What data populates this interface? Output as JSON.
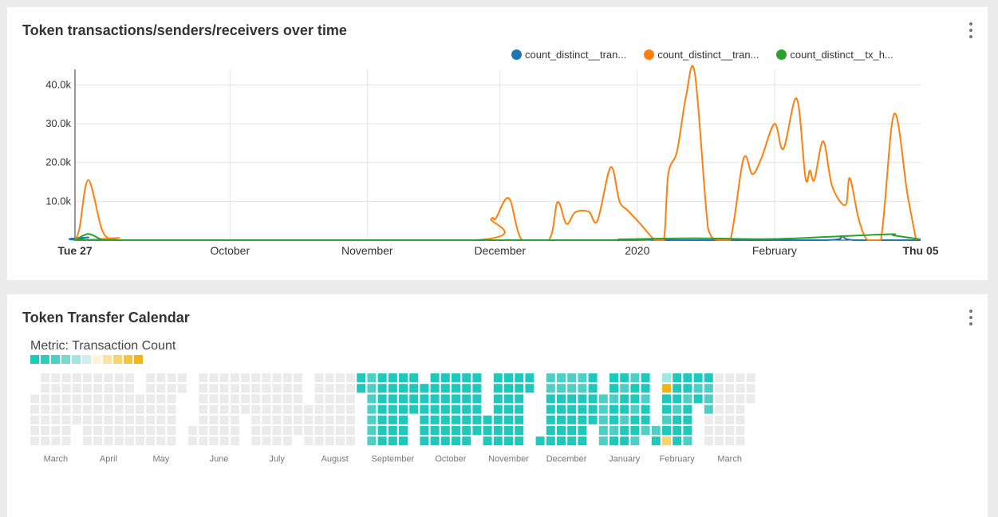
{
  "panel1": {
    "title": "Token transactions/senders/receivers over time",
    "legend": [
      {
        "label": "count_distinct__tran...",
        "color": "#1f77b4"
      },
      {
        "label": "count_distinct__tran...",
        "color": "#ff7f0e"
      },
      {
        "label": "count_distinct__tx_h...",
        "color": "#2ca02c"
      }
    ]
  },
  "panel2": {
    "title": "Token Transfer Calendar",
    "metric_label": "Metric: Transaction Count",
    "scale_colors": [
      "#1ec8bb",
      "#30cbc0",
      "#4ecfc6",
      "#75d9d2",
      "#a3e6e1",
      "#cfefed",
      "#fff4d8",
      "#fbe2a0",
      "#f9d36c",
      "#f5c33e",
      "#f2b418"
    ],
    "months": [
      "March",
      "April",
      "May",
      "June",
      "July",
      "August",
      "September",
      "October",
      "November",
      "December",
      "January",
      "February",
      "March"
    ],
    "empty_color": "#ebebeb"
  },
  "chart_data": [
    {
      "type": "line",
      "title": "Token transactions/senders/receivers over time",
      "xlabel": "",
      "ylabel": "",
      "x_tick_labels": [
        "Tue 27",
        "October",
        "November",
        "December",
        "2020",
        "February",
        "Thu 05"
      ],
      "y_tick_labels": [
        "10.0k",
        "20.0k",
        "30.0k",
        "40.0k"
      ],
      "ylim": [
        0,
        44000
      ],
      "x_range": [
        "2019-08-27",
        "2020-03-05"
      ],
      "grid": true,
      "legend_position": "top-right",
      "series": [
        {
          "name": "count_distinct__tran...",
          "color": "#1f77b4",
          "points": [
            [
              "2019-08-27",
              0
            ],
            [
              "2019-08-30",
              700
            ],
            [
              "2019-09-02",
              0
            ],
            [
              "2019-11-28",
              0
            ],
            [
              "2019-12-29",
              0
            ],
            [
              "2020-01-03",
              300
            ],
            [
              "2020-01-07",
              0
            ],
            [
              "2020-02-12",
              0
            ],
            [
              "2020-02-16",
              1000
            ],
            [
              "2020-02-19",
              0
            ],
            [
              "2020-03-05",
              0
            ]
          ]
        },
        {
          "name": "count_distinct__tran...",
          "color": "#ff7f0e",
          "points": [
            [
              "2019-08-27",
              0
            ],
            [
              "2019-08-28",
              3000
            ],
            [
              "2019-08-30",
              15500
            ],
            [
              "2019-09-02",
              3000
            ],
            [
              "2019-09-04",
              300
            ],
            [
              "2019-09-06",
              600
            ],
            [
              "2019-09-08",
              0
            ],
            [
              "2019-11-25",
              0
            ],
            [
              "2019-11-29",
              5500
            ],
            [
              "2019-11-30",
              5500
            ],
            [
              "2019-12-03",
              10800
            ],
            [
              "2019-12-06",
              0
            ],
            [
              "2019-12-12",
              0
            ],
            [
              "2019-12-14",
              9800
            ],
            [
              "2019-12-16",
              4200
            ],
            [
              "2019-12-18",
              7200
            ],
            [
              "2019-12-21",
              7400
            ],
            [
              "2019-12-23",
              5000
            ],
            [
              "2019-12-26",
              18800
            ],
            [
              "2019-12-28",
              10000
            ],
            [
              "2019-12-30",
              7500
            ],
            [
              "2020-01-02",
              3800
            ],
            [
              "2020-01-05",
              0
            ],
            [
              "2020-01-07",
              0
            ],
            [
              "2020-01-08",
              17000
            ],
            [
              "2020-01-10",
              23000
            ],
            [
              "2020-01-12",
              37000
            ],
            [
              "2020-01-14",
              43000
            ],
            [
              "2020-01-17",
              3000
            ],
            [
              "2020-01-19",
              0
            ],
            [
              "2020-01-22",
              0
            ],
            [
              "2020-01-25",
              21000
            ],
            [
              "2020-01-27",
              17000
            ],
            [
              "2020-01-29",
              21000
            ],
            [
              "2020-02-01",
              30000
            ],
            [
              "2020-02-03",
              23500
            ],
            [
              "2020-02-06",
              36500
            ],
            [
              "2020-02-08",
              16000
            ],
            [
              "2020-02-09",
              18000
            ],
            [
              "2020-02-10",
              15500
            ],
            [
              "2020-02-12",
              25500
            ],
            [
              "2020-02-14",
              14000
            ],
            [
              "2020-02-17",
              9000
            ],
            [
              "2020-02-18",
              16000
            ],
            [
              "2020-02-20",
              5500
            ],
            [
              "2020-02-22",
              0
            ],
            [
              "2020-02-25",
              0
            ],
            [
              "2020-02-28",
              32500
            ],
            [
              "2020-03-02",
              12000
            ],
            [
              "2020-03-04",
              0
            ]
          ]
        },
        {
          "name": "count_distinct__tx_h...",
          "color": "#2ca02c",
          "points": [
            [
              "2019-08-27",
              0
            ],
            [
              "2019-08-30",
              1600
            ],
            [
              "2019-09-02",
              200
            ],
            [
              "2019-09-05",
              0
            ],
            [
              "2019-12-26",
              0
            ],
            [
              "2019-12-28",
              200
            ],
            [
              "2020-01-14",
              500
            ],
            [
              "2020-02-01",
              300
            ],
            [
              "2020-02-26",
              1500
            ],
            [
              "2020-02-28",
              1200
            ],
            [
              "2020-03-05",
              200
            ]
          ]
        }
      ]
    },
    {
      "type": "heatmap",
      "title": "Token Transfer Calendar",
      "metric": "Transaction Count",
      "months": [
        "March",
        "April",
        "May",
        "June",
        "July",
        "August",
        "September",
        "October",
        "November",
        "December",
        "January",
        "February",
        "March"
      ]
    }
  ]
}
